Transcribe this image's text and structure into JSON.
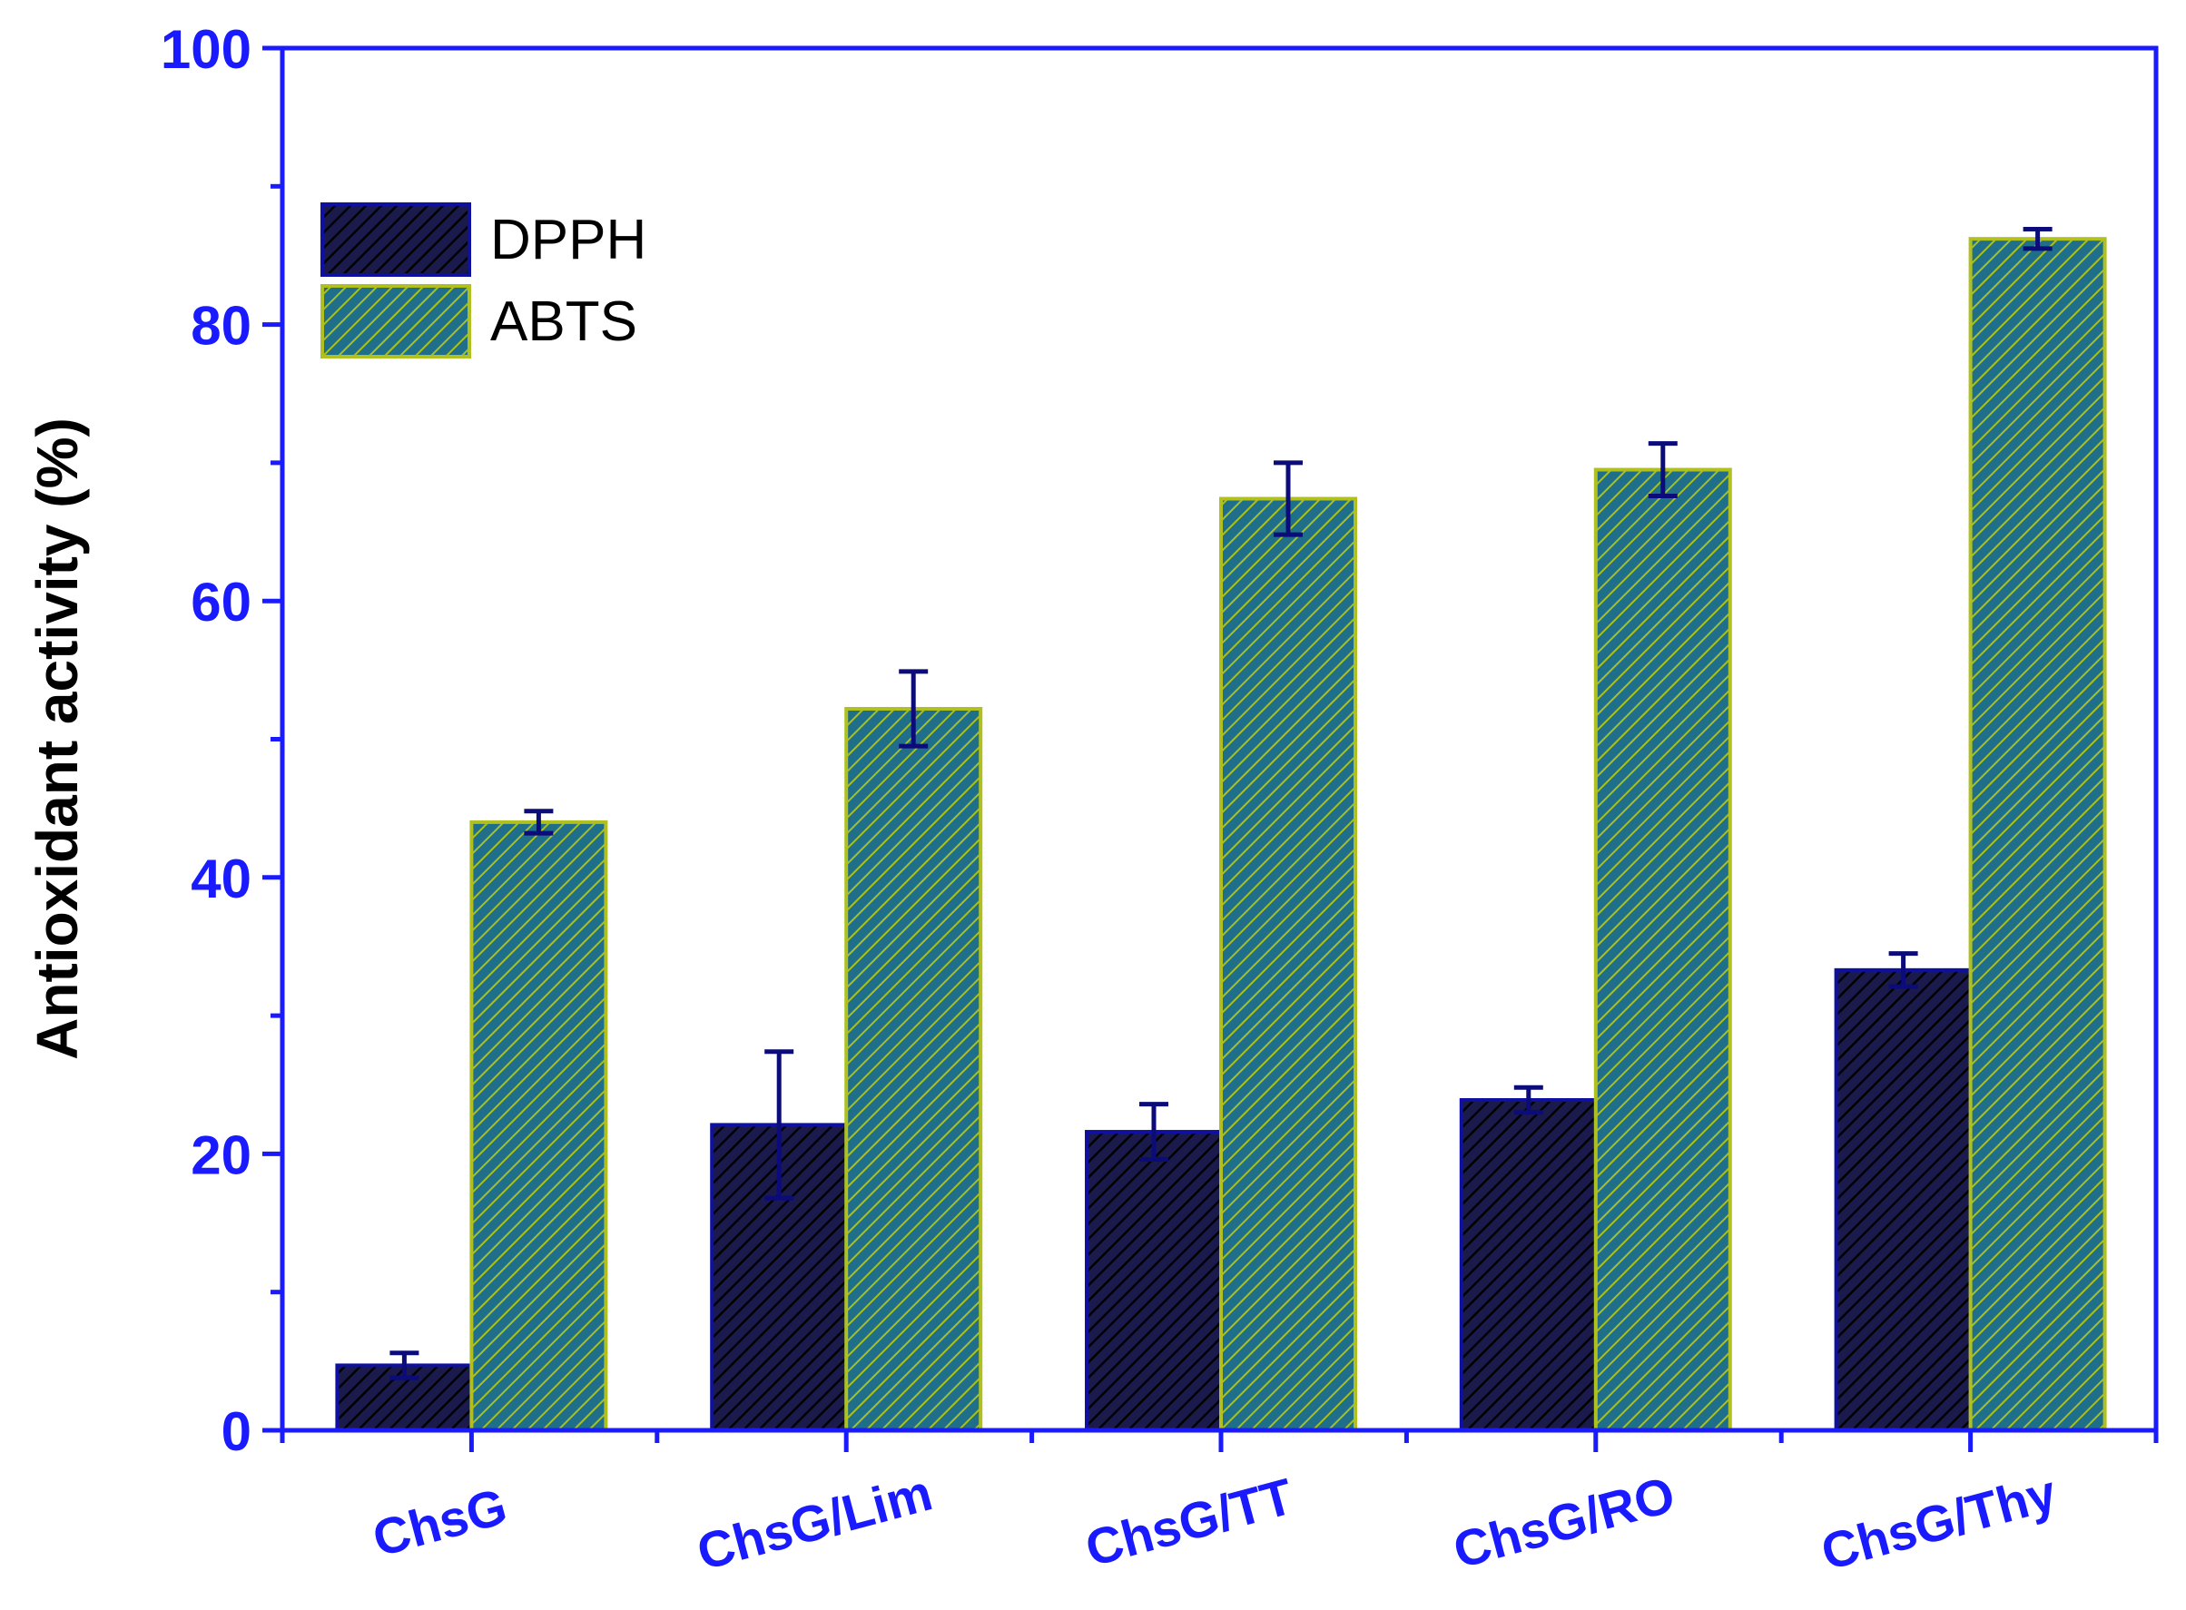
{
  "chart_data": {
    "type": "bar",
    "title": "",
    "xlabel": "",
    "ylabel": "Antioxidant activity (%)",
    "ylim": [
      0,
      100
    ],
    "yticks": [
      0,
      20,
      40,
      60,
      80,
      100
    ],
    "yticks_minor": [
      10,
      30,
      50,
      70,
      90
    ],
    "categories": [
      "ChsG",
      "ChsG/Lim",
      "ChsG/TT",
      "ChsG/RO",
      "ChsG/Thy"
    ],
    "series": [
      {
        "name": "DPPH",
        "values": [
          4.7,
          22.1,
          21.6,
          23.9,
          33.3
        ],
        "errors": [
          0.9,
          5.3,
          2.0,
          0.9,
          1.2
        ],
        "color": "#1a1a4d",
        "hatch_color": "#000000",
        "edge_color": "#1010a0"
      },
      {
        "name": "ABTS",
        "values": [
          44.0,
          52.2,
          67.4,
          69.5,
          86.2
        ],
        "errors": [
          0.8,
          2.7,
          2.6,
          1.9,
          0.7
        ],
        "color": "#1f6f8b",
        "hatch_color": "#a8c020",
        "edge_color": "#b0c020"
      }
    ],
    "axis_color": "#1a1aff",
    "errorbar_color": "#0b0b7a",
    "legend_position": "top-left",
    "grid": false,
    "x_label_rotation": "slanted"
  }
}
